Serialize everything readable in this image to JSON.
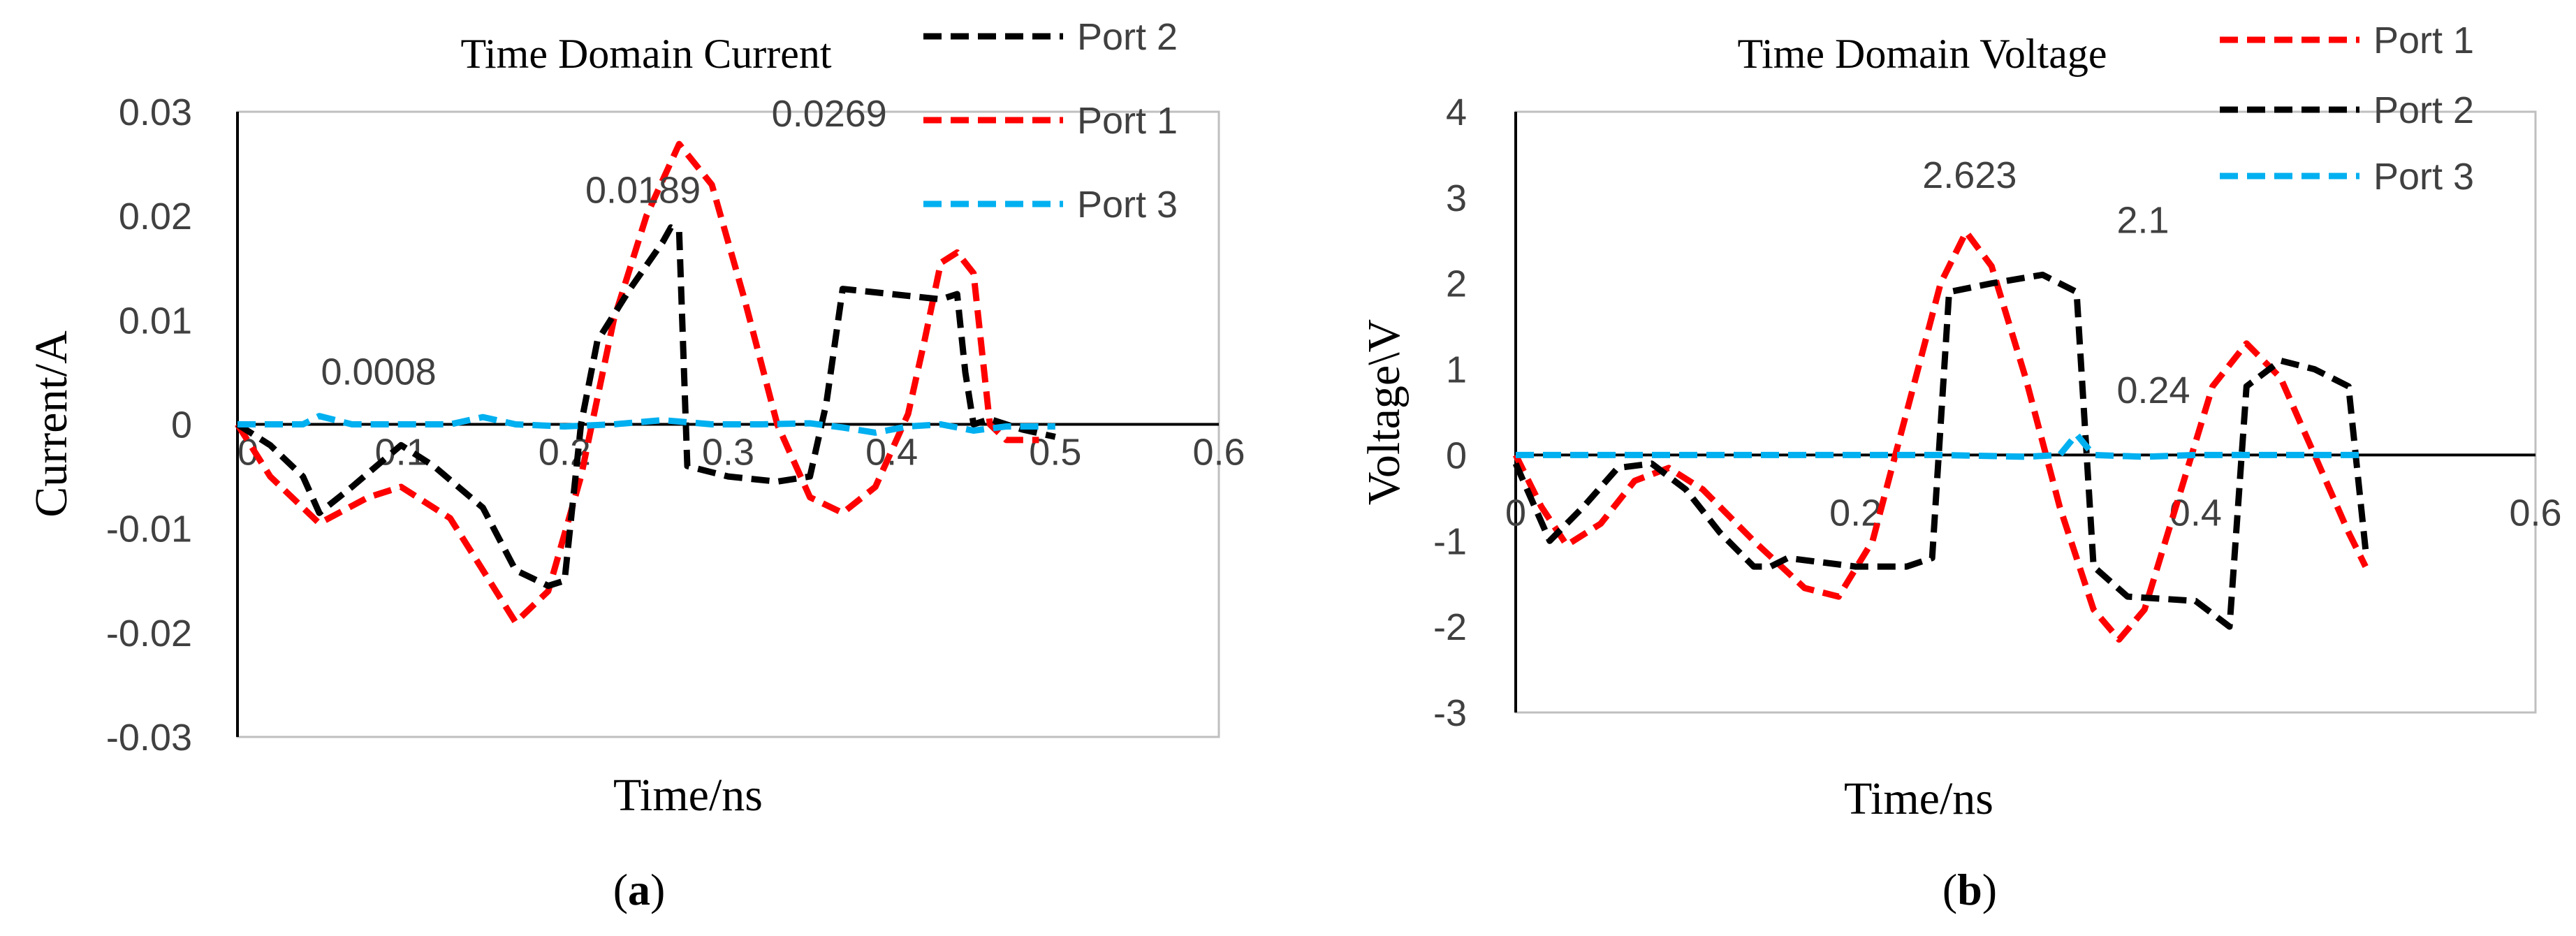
{
  "chart_data": [
    {
      "type": "line",
      "panel_label": {
        "open": "(",
        "letter": "a",
        "close": ")"
      },
      "title": "Time Domain Current",
      "xlabel": "Time/ns",
      "ylabel": "Current/A",
      "xlim": [
        0,
        0.6
      ],
      "ylim": [
        -0.03,
        0.03
      ],
      "xticks": [
        0,
        0.1,
        0.2,
        0.3,
        0.4,
        0.5,
        0.6
      ],
      "xtick_labels": [
        "0",
        "0.1",
        "0.2",
        "0.3",
        "0.4",
        "0.5",
        "0.6"
      ],
      "yticks": [
        -0.03,
        -0.02,
        -0.01,
        0,
        0.01,
        0.02,
        0.03
      ],
      "ytick_labels": [
        "-0.03",
        "-0.02",
        "-0.01",
        "0",
        "0.01",
        "0.02",
        "0.03"
      ],
      "grid": false,
      "legend_position": "top-right",
      "legend_order": [
        "Port 2",
        "Port 1",
        "Port 3"
      ],
      "series": [
        {
          "name": "Port 1",
          "color": "#ff0000",
          "points": [
            [
              0,
              0
            ],
            [
              0.02,
              -0.005
            ],
            [
              0.05,
              -0.0095
            ],
            [
              0.08,
              -0.007
            ],
            [
              0.1,
              -0.006
            ],
            [
              0.13,
              -0.009
            ],
            [
              0.15,
              -0.014
            ],
            [
              0.17,
              -0.019
            ],
            [
              0.19,
              -0.016
            ],
            [
              0.21,
              -0.005
            ],
            [
              0.23,
              0.01
            ],
            [
              0.25,
              0.02
            ],
            [
              0.27,
              0.0269
            ],
            [
              0.29,
              0.023
            ],
            [
              0.31,
              0.012
            ],
            [
              0.33,
              0.0
            ],
            [
              0.35,
              -0.007
            ],
            [
              0.37,
              -0.0085
            ],
            [
              0.39,
              -0.006
            ],
            [
              0.41,
              0.001
            ],
            [
              0.42,
              0.008
            ],
            [
              0.43,
              0.0155
            ],
            [
              0.44,
              0.0165
            ],
            [
              0.45,
              0.0145
            ],
            [
              0.46,
              0.0
            ],
            [
              0.47,
              -0.0015
            ],
            [
              0.49,
              -0.0015
            ]
          ]
        },
        {
          "name": "Port 2",
          "color": "#000000",
          "points": [
            [
              0,
              0
            ],
            [
              0.02,
              -0.002
            ],
            [
              0.04,
              -0.005
            ],
            [
              0.05,
              -0.0085
            ],
            [
              0.07,
              -0.006
            ],
            [
              0.1,
              -0.002
            ],
            [
              0.12,
              -0.004
            ],
            [
              0.15,
              -0.008
            ],
            [
              0.17,
              -0.014
            ],
            [
              0.19,
              -0.0155
            ],
            [
              0.2,
              -0.015
            ],
            [
              0.21,
              0.0
            ],
            [
              0.22,
              0.008
            ],
            [
              0.24,
              0.013
            ],
            [
              0.26,
              0.0175
            ],
            [
              0.265,
              0.0189
            ],
            [
              0.27,
              0.0185
            ],
            [
              0.275,
              -0.004
            ],
            [
              0.3,
              -0.005
            ],
            [
              0.33,
              -0.0055
            ],
            [
              0.35,
              -0.005
            ],
            [
              0.36,
              0.002
            ],
            [
              0.37,
              0.013
            ],
            [
              0.4,
              0.0125
            ],
            [
              0.43,
              0.012
            ],
            [
              0.44,
              0.0125
            ],
            [
              0.445,
              0.005
            ],
            [
              0.45,
              0.0
            ],
            [
              0.46,
              0.0005
            ],
            [
              0.48,
              -0.0005
            ],
            [
              0.5,
              -0.0012
            ]
          ]
        },
        {
          "name": "Port 3",
          "color": "#00b0f0",
          "points": [
            [
              0,
              0
            ],
            [
              0.04,
              0.0
            ],
            [
              0.05,
              0.0008
            ],
            [
              0.07,
              0.0
            ],
            [
              0.1,
              0.0
            ],
            [
              0.13,
              0.0
            ],
            [
              0.15,
              0.0007
            ],
            [
              0.17,
              0.0
            ],
            [
              0.2,
              -0.0002
            ],
            [
              0.23,
              0.0
            ],
            [
              0.26,
              0.0004
            ],
            [
              0.29,
              0.0
            ],
            [
              0.32,
              0.0
            ],
            [
              0.35,
              0.0001
            ],
            [
              0.37,
              -0.0003
            ],
            [
              0.39,
              -0.0008
            ],
            [
              0.41,
              -0.0002
            ],
            [
              0.43,
              0.0
            ],
            [
              0.45,
              -0.0006
            ],
            [
              0.47,
              -0.0002
            ],
            [
              0.5,
              -0.0002
            ]
          ]
        }
      ],
      "annotations": [
        {
          "text": "0.0008",
          "x": 0.05,
          "y": 0.0008
        },
        {
          "text": "0.0189",
          "x": 0.265,
          "y": 0.0189
        },
        {
          "text": "0.0269",
          "x": 0.27,
          "y": 0.0269
        }
      ]
    },
    {
      "type": "line",
      "panel_label": {
        "open": "(",
        "letter": "b",
        "close": ")"
      },
      "title": "Time Domain Voltage",
      "xlabel": "Time/ns",
      "ylabel": "Voltage\\V",
      "xlim": [
        0,
        0.6
      ],
      "ylim": [
        -3,
        4
      ],
      "xticks": [
        0,
        0.2,
        0.4,
        0.6
      ],
      "xtick_labels": [
        "0",
        "0.2",
        "0.4",
        "0.6"
      ],
      "yticks": [
        -3,
        -2,
        -1,
        0,
        1,
        2,
        3,
        4
      ],
      "ytick_labels": [
        "-3",
        "-2",
        "-1",
        "0",
        "1",
        "2",
        "3",
        "4"
      ],
      "grid": false,
      "legend_position": "top-right",
      "legend_order": [
        "Port 1",
        "Port 2",
        "Port 3"
      ],
      "series": [
        {
          "name": "Port 1",
          "color": "#ff0000",
          "points": [
            [
              0,
              0
            ],
            [
              0.015,
              -0.6
            ],
            [
              0.03,
              -1.05
            ],
            [
              0.05,
              -0.8
            ],
            [
              0.07,
              -0.3
            ],
            [
              0.09,
              -0.15
            ],
            [
              0.11,
              -0.4
            ],
            [
              0.14,
              -1.0
            ],
            [
              0.17,
              -1.55
            ],
            [
              0.19,
              -1.65
            ],
            [
              0.21,
              -1.0
            ],
            [
              0.23,
              0.5
            ],
            [
              0.25,
              2.0
            ],
            [
              0.265,
              2.6
            ],
            [
              0.28,
              2.2
            ],
            [
              0.3,
              0.9
            ],
            [
              0.32,
              -0.6
            ],
            [
              0.34,
              -1.8
            ],
            [
              0.355,
              -2.15
            ],
            [
              0.37,
              -1.8
            ],
            [
              0.39,
              -0.5
            ],
            [
              0.41,
              0.8
            ],
            [
              0.43,
              1.3
            ],
            [
              0.45,
              0.9
            ],
            [
              0.47,
              0.0
            ],
            [
              0.49,
              -0.9
            ],
            [
              0.5,
              -1.3
            ]
          ]
        },
        {
          "name": "Port 2",
          "color": "#000000",
          "points": [
            [
              0,
              -0.1
            ],
            [
              0.02,
              -1.0
            ],
            [
              0.04,
              -0.6
            ],
            [
              0.06,
              -0.15
            ],
            [
              0.08,
              -0.1
            ],
            [
              0.1,
              -0.4
            ],
            [
              0.12,
              -0.9
            ],
            [
              0.14,
              -1.3
            ],
            [
              0.15,
              -1.3
            ],
            [
              0.16,
              -1.2
            ],
            [
              0.2,
              -1.3
            ],
            [
              0.23,
              -1.3
            ],
            [
              0.245,
              -1.2
            ],
            [
              0.255,
              1.9
            ],
            [
              0.28,
              2.0
            ],
            [
              0.31,
              2.1
            ],
            [
              0.33,
              1.9
            ],
            [
              0.34,
              -1.3
            ],
            [
              0.36,
              -1.65
            ],
            [
              0.4,
              -1.7
            ],
            [
              0.42,
              -2.0
            ],
            [
              0.43,
              0.8
            ],
            [
              0.45,
              1.1
            ],
            [
              0.47,
              1.0
            ],
            [
              0.49,
              0.8
            ],
            [
              0.5,
              -1.1
            ]
          ]
        },
        {
          "name": "Port 3",
          "color": "#00b0f0",
          "points": [
            [
              0,
              0
            ],
            [
              0.05,
              0.0
            ],
            [
              0.1,
              0.0
            ],
            [
              0.15,
              0.0
            ],
            [
              0.2,
              0.0
            ],
            [
              0.25,
              0.0
            ],
            [
              0.3,
              -0.02
            ],
            [
              0.32,
              0.0
            ],
            [
              0.33,
              0.24
            ],
            [
              0.34,
              0.0
            ],
            [
              0.37,
              -0.02
            ],
            [
              0.4,
              0.0
            ],
            [
              0.45,
              0.0
            ],
            [
              0.5,
              0.0
            ]
          ]
        }
      ],
      "annotations": [
        {
          "text": "2.623",
          "x": 0.265,
          "y": 2.623
        },
        {
          "text": "2.1",
          "x": 0.33,
          "y": 2.1
        },
        {
          "text": "0.24",
          "x": 0.33,
          "y": 0.24
        }
      ]
    }
  ]
}
